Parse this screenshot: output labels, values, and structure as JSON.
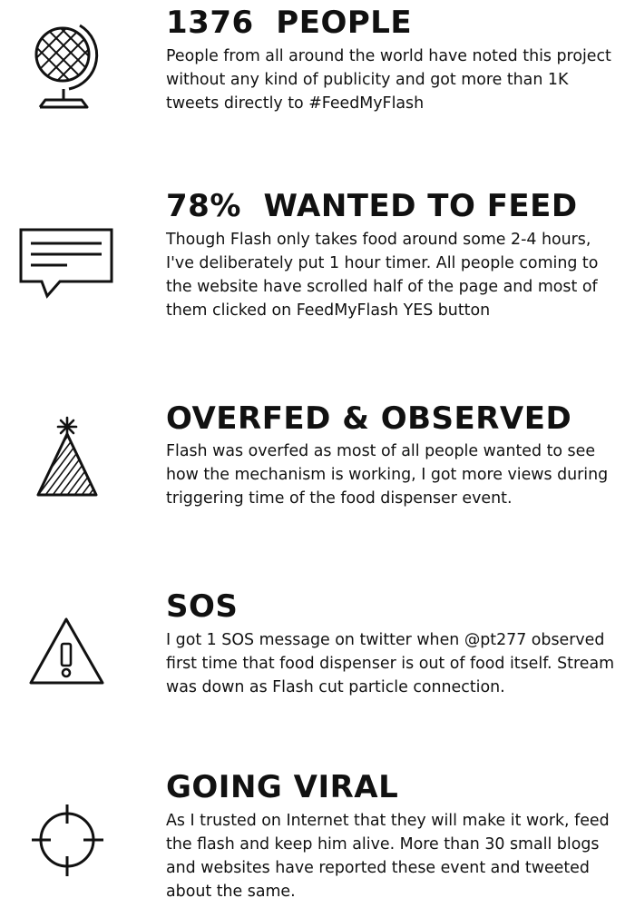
{
  "sections": [
    {
      "icon": "globe-icon",
      "title": "1376  PEOPLE",
      "text": "People from all around the world have noted this project without any kind of publicity and got more than 1K tweets directly to #FeedMyFlash"
    },
    {
      "icon": "speech-bubble-icon",
      "title": "78%  WANTED TO FEED",
      "text": "Though Flash only takes food around some 2-4 hours, I've deliberately put 1 hour timer. All people coming to the website have scrolled half of the page and most of them clicked on FeedMyFlash YES button"
    },
    {
      "icon": "party-hat-icon",
      "title": "OVERFED & OBSERVED",
      "text": "Flash was overfed as most of all people wanted to see how the mechanism is working, I got more views during triggering time of the food dispenser event."
    },
    {
      "icon": "warning-triangle-icon",
      "title": "SOS",
      "text": "I got 1 SOS message on twitter when @pt277 observed first time that food dispenser is out of food itself. Stream was down as Flash cut particle connection."
    },
    {
      "icon": "crosshair-icon",
      "title": "GOING VIRAL",
      "text": "As I trusted on Internet that they will make it work, feed the flash and keep him alive. More than 30 small blogs and websites have reported these event and tweeted about the same."
    }
  ]
}
